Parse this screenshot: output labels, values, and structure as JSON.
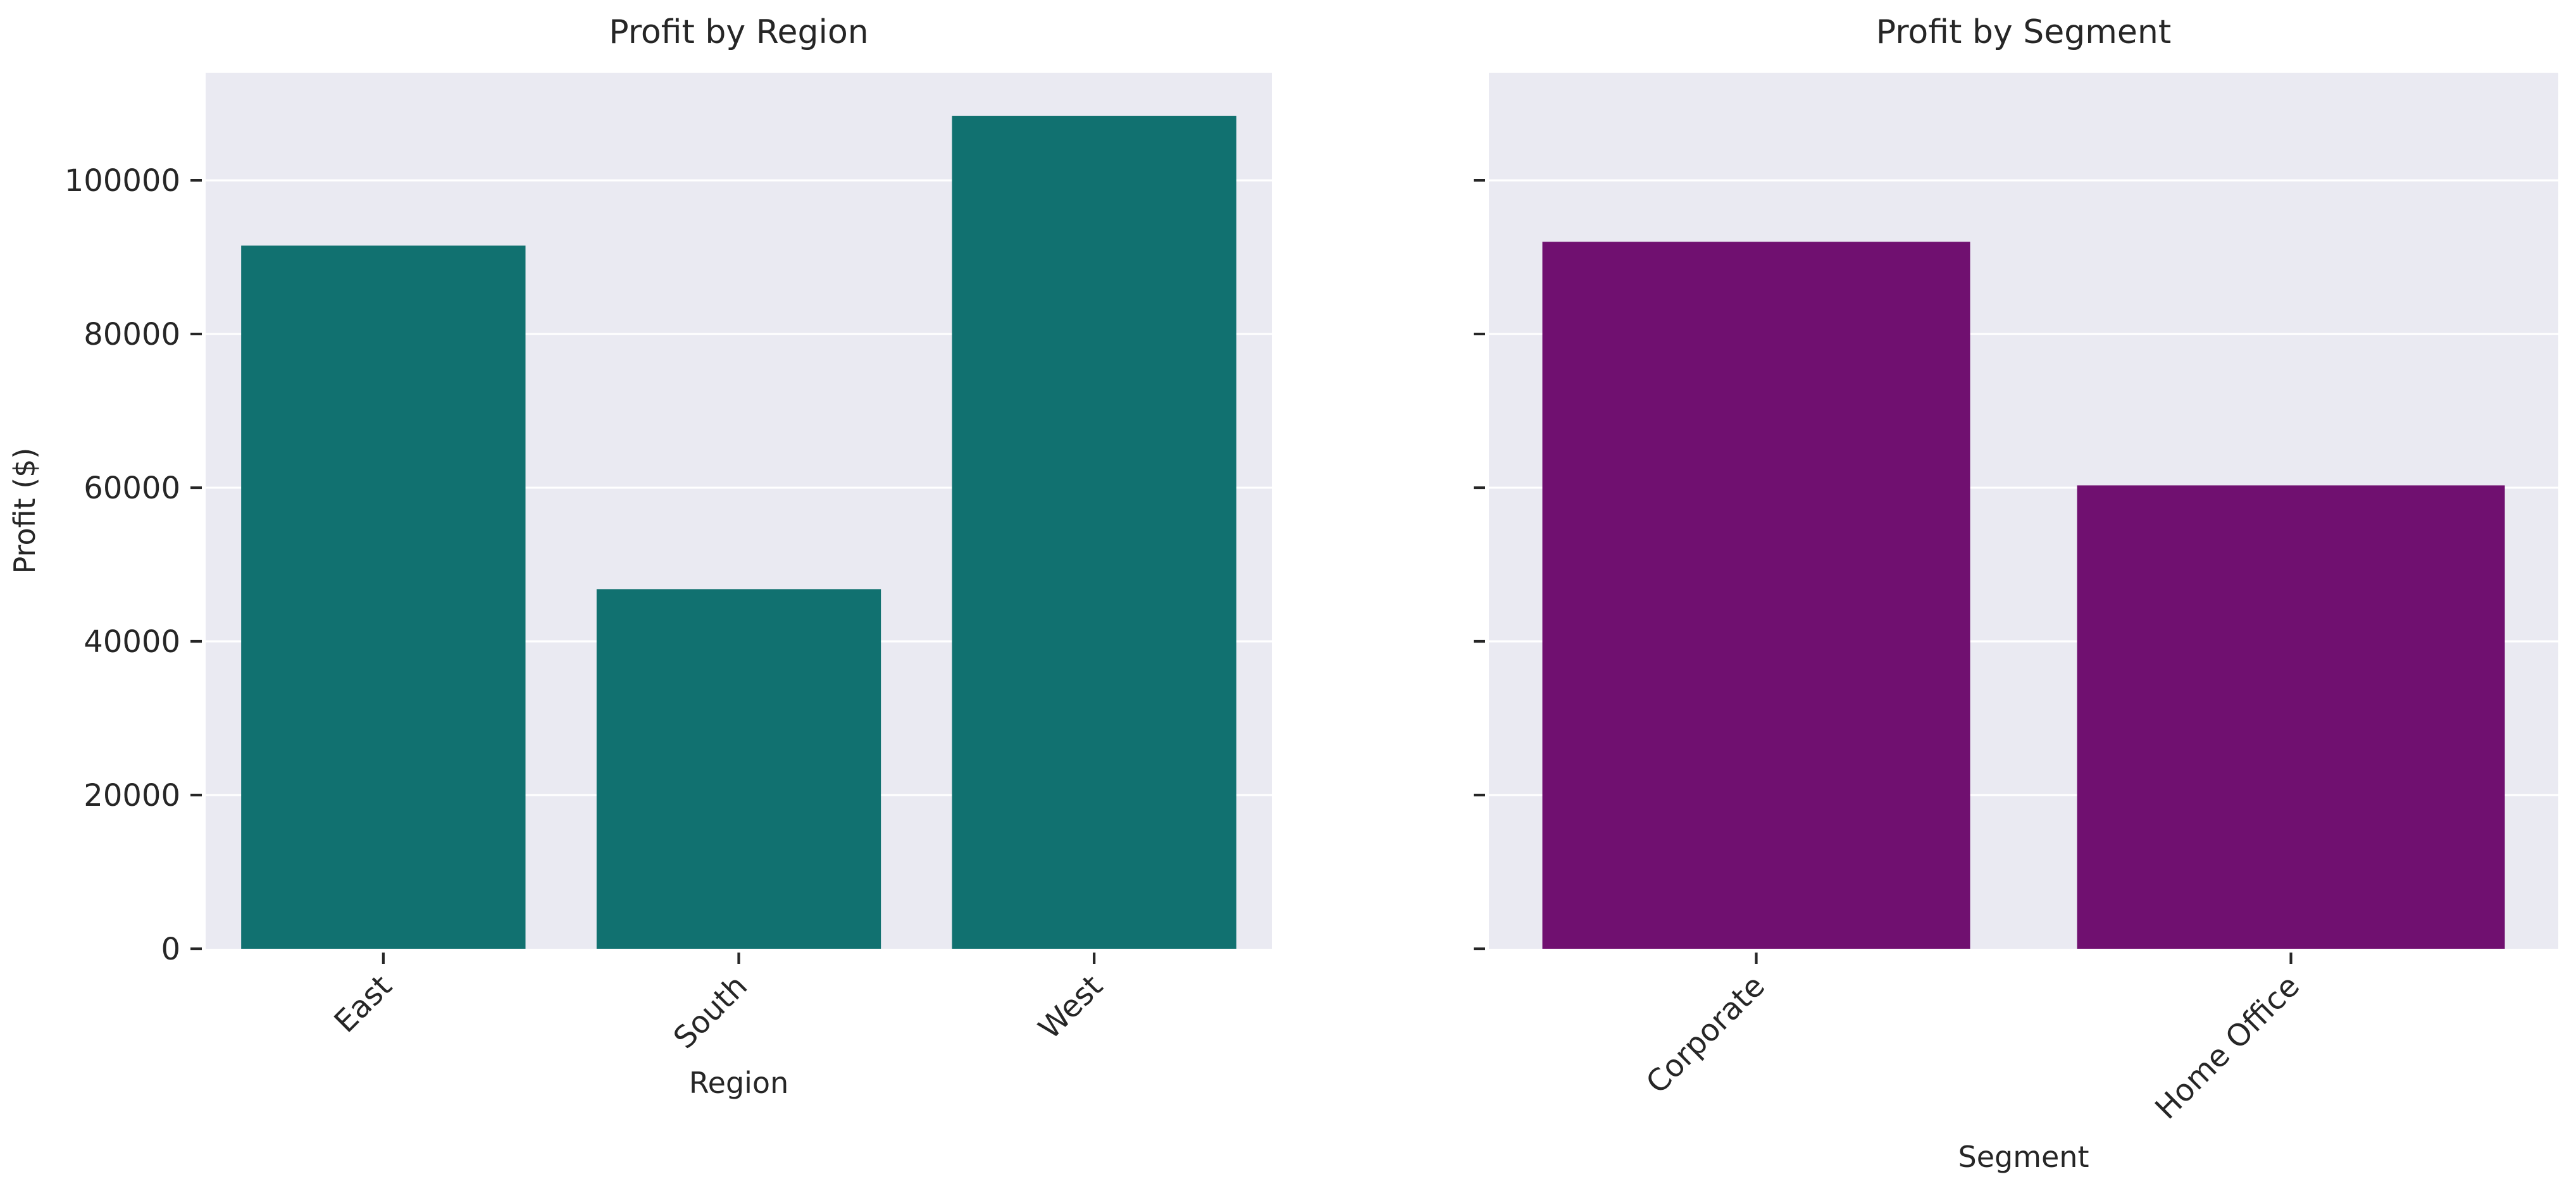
{
  "chart_data": [
    {
      "type": "bar",
      "title": "Profit by Region",
      "xlabel": "Region",
      "ylabel": "Profit ($)",
      "categories": [
        "East",
        "South",
        "West"
      ],
      "values": [
        91500,
        46800,
        108400
      ],
      "ylim": [
        0,
        114000
      ],
      "yticks": [
        0,
        20000,
        40000,
        60000,
        80000,
        100000
      ],
      "grid": true,
      "bar_color": "#117170"
    },
    {
      "type": "bar",
      "title": "Profit by Segment",
      "xlabel": "Segment",
      "ylabel": "",
      "categories": [
        "Corporate",
        "Home Office"
      ],
      "values": [
        92000,
        60300
      ],
      "ylim": [
        0,
        114000
      ],
      "yticks": [
        0,
        20000,
        40000,
        60000,
        80000,
        100000
      ],
      "grid": true,
      "bar_color": "#701070"
    }
  ]
}
